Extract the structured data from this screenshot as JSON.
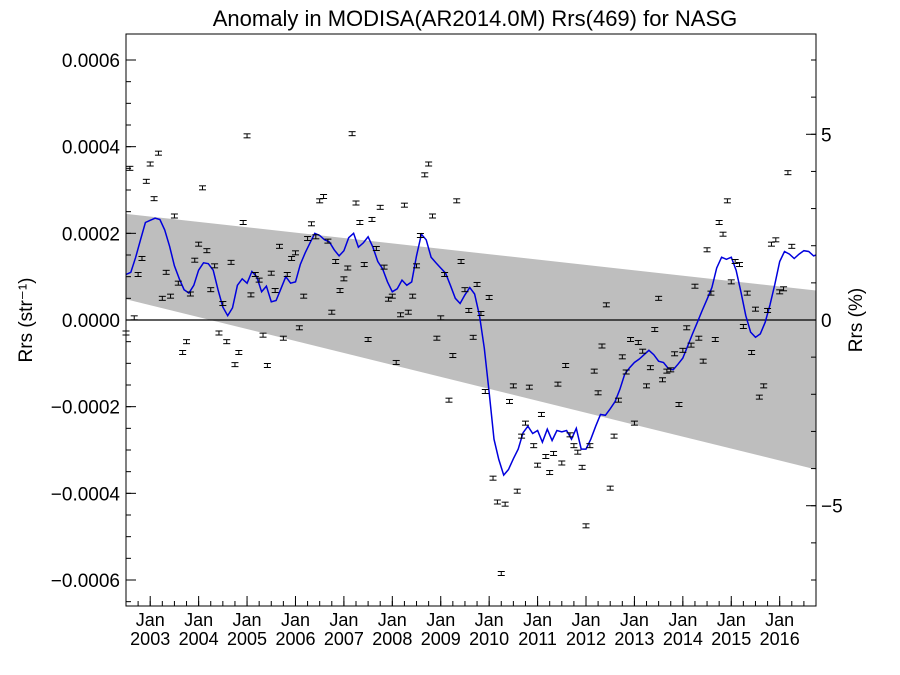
{
  "chart_data": {
    "type": "scatter",
    "title": "Anomaly in MODISA(AR2014.0M) Rrs(469) for NASG",
    "ylabel_left": "Rrs (str⁻¹)",
    "ylabel_right": "Rrs (%)",
    "xlim": [
      2002.5,
      2016.75
    ],
    "ylim": [
      -0.00066,
      0.00066
    ],
    "y2lim": [
      -7.7,
      7.7
    ],
    "yticks": [
      {
        "value": 0.0006,
        "label": "0.0006"
      },
      {
        "value": 0.0004,
        "label": "0.0004"
      },
      {
        "value": 0.0002,
        "label": "0.0002"
      },
      {
        "value": 0.0,
        "label": "0.0000"
      },
      {
        "value": -0.0002,
        "label": "−0.0002"
      },
      {
        "value": -0.0004,
        "label": "−0.0004"
      },
      {
        "value": -0.0006,
        "label": "−0.0006"
      }
    ],
    "y2ticks": [
      {
        "value": 5,
        "label": "5"
      },
      {
        "value": 0,
        "label": "0"
      },
      {
        "value": -5,
        "label": "−5"
      }
    ],
    "xticks": [
      {
        "value": 2003.0,
        "month": "Jan",
        "year": "2003"
      },
      {
        "value": 2004.0,
        "month": "Jan",
        "year": "2004"
      },
      {
        "value": 2005.0,
        "month": "Jan",
        "year": "2005"
      },
      {
        "value": 2006.0,
        "month": "Jan",
        "year": "2006"
      },
      {
        "value": 2007.0,
        "month": "Jan",
        "year": "2007"
      },
      {
        "value": 2008.0,
        "month": "Jan",
        "year": "2008"
      },
      {
        "value": 2009.0,
        "month": "Jan",
        "year": "2009"
      },
      {
        "value": 2010.0,
        "month": "Jan",
        "year": "2010"
      },
      {
        "value": 2011.0,
        "month": "Jan",
        "year": "2011"
      },
      {
        "value": 2012.0,
        "month": "Jan",
        "year": "2012"
      },
      {
        "value": 2013.0,
        "month": "Jan",
        "year": "2013"
      },
      {
        "value": 2014.0,
        "month": "Jan",
        "year": "2014"
      },
      {
        "value": 2015.0,
        "month": "Jan",
        "year": "2015"
      },
      {
        "value": 2016.0,
        "month": "Jan",
        "year": "2016"
      }
    ],
    "confidence_band": {
      "color": "#bebebe",
      "upper": [
        [
          2002.5,
          0.000245
        ],
        [
          2016.75,
          6.8e-05
        ]
      ],
      "lower": [
        [
          2002.5,
          4.8e-05
        ],
        [
          2016.75,
          -0.000345
        ]
      ]
    },
    "zero_line": true,
    "points": [
      [
        2002.5,
        -3e-05
      ],
      [
        2002.58,
        0.00035
      ],
      [
        2002.67,
        5e-06
      ],
      [
        2002.75,
        0.000105
      ],
      [
        2002.83,
        0.000142
      ],
      [
        2002.92,
        0.00032
      ],
      [
        2003.0,
        0.00036
      ],
      [
        2003.08,
        0.00028
      ],
      [
        2003.17,
        0.000385
      ],
      [
        2003.25,
        5e-05
      ],
      [
        2003.33,
        0.00011
      ],
      [
        2003.42,
        5.5e-05
      ],
      [
        2003.5,
        0.00024
      ],
      [
        2003.58,
        8.5e-05
      ],
      [
        2003.67,
        -7.5e-05
      ],
      [
        2003.75,
        -5e-05
      ],
      [
        2003.83,
        6e-05
      ],
      [
        2003.92,
        0.000138
      ],
      [
        2004.0,
        0.000175
      ],
      [
        2004.08,
        0.000305
      ],
      [
        2004.17,
        0.00016
      ],
      [
        2004.25,
        7e-05
      ],
      [
        2004.33,
        0.000125
      ],
      [
        2004.42,
        -3e-05
      ],
      [
        2004.5,
        3.8e-05
      ],
      [
        2004.58,
        -5e-05
      ],
      [
        2004.67,
        0.000133
      ],
      [
        2004.75,
        -0.000103
      ],
      [
        2004.83,
        -7.5e-05
      ],
      [
        2004.92,
        0.000225
      ],
      [
        2005.0,
        0.000425
      ],
      [
        2005.08,
        5.8e-05
      ],
      [
        2005.17,
        0.000105
      ],
      [
        2005.25,
        9.2e-05
      ],
      [
        2005.33,
        -3.5e-05
      ],
      [
        2005.42,
        -0.000105
      ],
      [
        2005.5,
        0.000108
      ],
      [
        2005.58,
        6.8e-05
      ],
      [
        2005.67,
        0.00017
      ],
      [
        2005.75,
        -4.2e-05
      ],
      [
        2005.83,
        0.000105
      ],
      [
        2005.92,
        0.000142
      ],
      [
        2006.0,
        0.000155
      ],
      [
        2006.08,
        -1.8e-05
      ],
      [
        2006.17,
        5.5e-05
      ],
      [
        2006.25,
        0.000188
      ],
      [
        2006.33,
        0.000222
      ],
      [
        2006.42,
        0.000192
      ],
      [
        2006.5,
        0.000275
      ],
      [
        2006.58,
        0.000285
      ],
      [
        2006.67,
        0.000182
      ],
      [
        2006.75,
        1.8e-05
      ],
      [
        2006.83,
        0.000135
      ],
      [
        2006.92,
        6.8e-05
      ],
      [
        2007.0,
        9.5e-05
      ],
      [
        2007.08,
        0.00012
      ],
      [
        2007.17,
        0.00043
      ],
      [
        2007.25,
        0.00027
      ],
      [
        2007.33,
        0.000225
      ],
      [
        2007.42,
        0.000128
      ],
      [
        2007.5,
        -4.5e-05
      ],
      [
        2007.58,
        0.000232
      ],
      [
        2007.67,
        0.000165
      ],
      [
        2007.75,
        0.00026
      ],
      [
        2007.83,
        0.000122
      ],
      [
        2007.92,
        4.8e-05
      ],
      [
        2008.0,
        5.5e-05
      ],
      [
        2008.08,
        -9.8e-05
      ],
      [
        2008.17,
        1.2e-05
      ],
      [
        2008.25,
        0.000265
      ],
      [
        2008.33,
        1.8e-05
      ],
      [
        2008.42,
        5.5e-05
      ],
      [
        2008.5,
        0.000125
      ],
      [
        2008.58,
        0.000195
      ],
      [
        2008.67,
        0.000335
      ],
      [
        2008.75,
        0.00036
      ],
      [
        2008.83,
        0.00024
      ],
      [
        2008.92,
        -4.2e-05
      ],
      [
        2009.0,
        5e-06
      ],
      [
        2009.08,
        0.000105
      ],
      [
        2009.17,
        -0.000185
      ],
      [
        2009.25,
        -8.2e-05
      ],
      [
        2009.33,
        0.000275
      ],
      [
        2009.42,
        0.000135
      ],
      [
        2009.5,
        7e-05
      ],
      [
        2009.58,
        2.2e-05
      ],
      [
        2009.67,
        -4e-05
      ],
      [
        2009.75,
        8.2e-05
      ],
      [
        2009.83,
        1.5e-05
      ],
      [
        2009.92,
        -0.000165
      ],
      [
        2010.0,
        5.2e-05
      ],
      [
        2010.08,
        -0.000365
      ],
      [
        2010.17,
        -0.00042
      ],
      [
        2010.25,
        -0.000585
      ],
      [
        2010.33,
        -0.000425
      ],
      [
        2010.42,
        -0.000188
      ],
      [
        2010.5,
        -0.000152
      ],
      [
        2010.58,
        -0.000395
      ],
      [
        2010.67,
        -0.000268
      ],
      [
        2010.75,
        -0.000238
      ],
      [
        2010.83,
        -0.000155
      ],
      [
        2010.92,
        -0.00029
      ],
      [
        2011.0,
        -0.000335
      ],
      [
        2011.08,
        -0.000218
      ],
      [
        2011.17,
        -0.000315
      ],
      [
        2011.25,
        -0.000352
      ],
      [
        2011.33,
        -0.000308
      ],
      [
        2011.42,
        -0.000148
      ],
      [
        2011.5,
        -0.00033
      ],
      [
        2011.58,
        -0.000105
      ],
      [
        2011.67,
        -0.000265
      ],
      [
        2011.75,
        -0.00029
      ],
      [
        2011.83,
        -0.000305
      ],
      [
        2011.92,
        -0.00034
      ],
      [
        2012.0,
        -0.000475
      ],
      [
        2012.08,
        -0.00029
      ],
      [
        2012.17,
        -0.000118
      ],
      [
        2012.25,
        -0.000168
      ],
      [
        2012.33,
        -6e-05
      ],
      [
        2012.42,
        3.5e-05
      ],
      [
        2012.5,
        -0.000388
      ],
      [
        2012.58,
        -0.000268
      ],
      [
        2012.67,
        -0.000185
      ],
      [
        2012.75,
        -8.5e-05
      ],
      [
        2012.83,
        -0.00012
      ],
      [
        2012.92,
        -4.5e-05
      ],
      [
        2013.0,
        -0.000238
      ],
      [
        2013.08,
        -5.2e-05
      ],
      [
        2013.17,
        -7.2e-05
      ],
      [
        2013.25,
        -0.000152
      ],
      [
        2013.33,
        -0.00011
      ],
      [
        2013.42,
        -2.2e-05
      ],
      [
        2013.5,
        5e-05
      ],
      [
        2013.58,
        -0.000138
      ],
      [
        2013.67,
        -0.000118
      ],
      [
        2013.75,
        -0.000115
      ],
      [
        2013.83,
        -7.8e-05
      ],
      [
        2013.92,
        -0.000195
      ],
      [
        2014.0,
        -7e-05
      ],
      [
        2014.08,
        -1.8e-05
      ],
      [
        2014.17,
        -5.8e-05
      ],
      [
        2014.25,
        7.8e-05
      ],
      [
        2014.33,
        -4.2e-05
      ],
      [
        2014.42,
        -9.5e-05
      ],
      [
        2014.5,
        0.000162
      ],
      [
        2014.58,
        6.2e-05
      ],
      [
        2014.67,
        -4.5e-05
      ],
      [
        2014.75,
        0.000225
      ],
      [
        2014.83,
        0.000198
      ],
      [
        2014.92,
        0.000275
      ],
      [
        2015.0,
        8.8e-05
      ],
      [
        2015.08,
        0.000135
      ],
      [
        2015.17,
        0.000128
      ],
      [
        2015.25,
        -1.5e-05
      ],
      [
        2015.33,
        6.2e-05
      ],
      [
        2015.42,
        -7.5e-05
      ],
      [
        2015.5,
        2.5e-05
      ],
      [
        2015.58,
        -0.000178
      ],
      [
        2015.67,
        -0.000152
      ],
      [
        2015.75,
        2.2e-05
      ],
      [
        2015.83,
        0.000175
      ],
      [
        2015.92,
        0.000185
      ],
      [
        2016.0,
        6.5e-05
      ],
      [
        2016.08,
        7.2e-05
      ],
      [
        2016.17,
        0.00034
      ],
      [
        2016.25,
        0.00017
      ]
    ],
    "smooth_line": {
      "color": "#0000dd",
      "points": [
        [
          2002.5,
          0.000105
        ],
        [
          2002.6,
          0.00011
        ],
        [
          2002.7,
          0.000145
        ],
        [
          2002.8,
          0.000185
        ],
        [
          2002.9,
          0.000225
        ],
        [
          2003.0,
          0.00023
        ],
        [
          2003.1,
          0.000235
        ],
        [
          2003.2,
          0.000232
        ],
        [
          2003.3,
          0.000208
        ],
        [
          2003.4,
          0.00017
        ],
        [
          2003.5,
          0.000125
        ],
        [
          2003.6,
          9.5e-05
        ],
        [
          2003.7,
          7e-05
        ],
        [
          2003.8,
          6.2e-05
        ],
        [
          2003.9,
          8e-05
        ],
        [
          2004.0,
          0.000115
        ],
        [
          2004.1,
          0.000132
        ],
        [
          2004.2,
          0.00013
        ],
        [
          2004.3,
          0.000115
        ],
        [
          2004.4,
          7e-05
        ],
        [
          2004.5,
          3e-05
        ],
        [
          2004.6,
          1e-05
        ],
        [
          2004.7,
          2.8e-05
        ],
        [
          2004.8,
          8e-05
        ],
        [
          2004.9,
          9.5e-05
        ],
        [
          2005.0,
          8.5e-05
        ],
        [
          2005.1,
          0.000112
        ],
        [
          2005.2,
          0.0001
        ],
        [
          2005.3,
          6.5e-05
        ],
        [
          2005.4,
          7.8e-05
        ],
        [
          2005.5,
          4.2e-05
        ],
        [
          2005.6,
          4.5e-05
        ],
        [
          2005.7,
          7.2e-05
        ],
        [
          2005.8,
          0.0001
        ],
        [
          2005.9,
          8.5e-05
        ],
        [
          2006.0,
          8.8e-05
        ],
        [
          2006.1,
          0.000128
        ],
        [
          2006.2,
          0.000155
        ],
        [
          2006.3,
          0.000178
        ],
        [
          2006.4,
          0.0002
        ],
        [
          2006.5,
          0.000195
        ],
        [
          2006.6,
          0.000185
        ],
        [
          2006.7,
          0.00018
        ],
        [
          2006.8,
          0.000162
        ],
        [
          2006.9,
          0.000148
        ],
        [
          2007.0,
          0.00016
        ],
        [
          2007.1,
          0.00019
        ],
        [
          2007.2,
          0.0002
        ],
        [
          2007.3,
          0.000168
        ],
        [
          2007.4,
          0.000178
        ],
        [
          2007.5,
          0.000192
        ],
        [
          2007.6,
          0.000168
        ],
        [
          2007.7,
          0.000135
        ],
        [
          2007.8,
          0.000118
        ],
        [
          2007.9,
          8.8e-05
        ],
        [
          2008.0,
          6.5e-05
        ],
        [
          2008.1,
          7.2e-05
        ],
        [
          2008.2,
          9.2e-05
        ],
        [
          2008.3,
          8e-05
        ],
        [
          2008.4,
          8.8e-05
        ],
        [
          2008.5,
          0.000148
        ],
        [
          2008.6,
          0.000198
        ],
        [
          2008.7,
          0.000185
        ],
        [
          2008.8,
          0.000145
        ],
        [
          2008.9,
          0.000132
        ],
        [
          2009.0,
          0.00012
        ],
        [
          2009.1,
          0.000108
        ],
        [
          2009.2,
          8e-05
        ],
        [
          2009.3,
          5e-05
        ],
        [
          2009.4,
          3.8e-05
        ],
        [
          2009.5,
          5.8e-05
        ],
        [
          2009.6,
          7.5e-05
        ],
        [
          2009.7,
          6e-05
        ],
        [
          2009.8,
          1e-05
        ],
        [
          2009.9,
          -6.5e-05
        ],
        [
          2010.0,
          -0.000168
        ],
        [
          2010.1,
          -0.000275
        ],
        [
          2010.2,
          -0.000322
        ],
        [
          2010.3,
          -0.000358
        ],
        [
          2010.4,
          -0.000345
        ],
        [
          2010.5,
          -0.00032
        ],
        [
          2010.6,
          -0.000298
        ],
        [
          2010.7,
          -0.00026
        ],
        [
          2010.8,
          -0.000245
        ],
        [
          2010.9,
          -0.000262
        ],
        [
          2011.0,
          -0.000255
        ],
        [
          2011.1,
          -0.000282
        ],
        [
          2011.2,
          -0.000252
        ],
        [
          2011.3,
          -0.000278
        ],
        [
          2011.4,
          -0.000255
        ],
        [
          2011.5,
          -0.000258
        ],
        [
          2011.6,
          -0.000255
        ],
        [
          2011.7,
          -0.000275
        ],
        [
          2011.8,
          -0.00025
        ],
        [
          2011.9,
          -0.000298
        ],
        [
          2012.0,
          -0.000298
        ],
        [
          2012.1,
          -0.000275
        ],
        [
          2012.2,
          -0.000245
        ],
        [
          2012.3,
          -0.000218
        ],
        [
          2012.4,
          -0.00022
        ],
        [
          2012.5,
          -0.000205
        ],
        [
          2012.6,
          -0.000188
        ],
        [
          2012.7,
          -0.00016
        ],
        [
          2012.8,
          -0.000125
        ],
        [
          2012.9,
          -0.00011
        ],
        [
          2013.0,
          -9.8e-05
        ],
        [
          2013.1,
          -9e-05
        ],
        [
          2013.2,
          -8e-05
        ],
        [
          2013.3,
          -7e-05
        ],
        [
          2013.4,
          -8e-05
        ],
        [
          2013.5,
          -9.5e-05
        ],
        [
          2013.6,
          -9.8e-05
        ],
        [
          2013.7,
          -0.000112
        ],
        [
          2013.8,
          -0.000115
        ],
        [
          2013.9,
          -0.000102
        ],
        [
          2014.0,
          -8.8e-05
        ],
        [
          2014.1,
          -6e-05
        ],
        [
          2014.2,
          -3.2e-05
        ],
        [
          2014.3,
          -5e-06
        ],
        [
          2014.4,
          2.2e-05
        ],
        [
          2014.5,
          4.8e-05
        ],
        [
          2014.6,
          7.5e-05
        ],
        [
          2014.7,
          0.00012
        ],
        [
          2014.8,
          0.000145
        ],
        [
          2014.9,
          0.00014
        ],
        [
          2015.0,
          0.000145
        ],
        [
          2015.1,
          0.000115
        ],
        [
          2015.2,
          6.5e-05
        ],
        [
          2015.3,
          1e-05
        ],
        [
          2015.4,
          -2.8e-05
        ],
        [
          2015.5,
          -4e-05
        ],
        [
          2015.6,
          -3.2e-05
        ],
        [
          2015.7,
          -5e-06
        ],
        [
          2015.8,
          3.5e-05
        ],
        [
          2015.9,
          8.2e-05
        ],
        [
          2016.0,
          0.000135
        ],
        [
          2016.1,
          0.000158
        ],
        [
          2016.2,
          0.000152
        ],
        [
          2016.3,
          0.000142
        ],
        [
          2016.4,
          0.000152
        ],
        [
          2016.5,
          0.00016
        ],
        [
          2016.6,
          0.000158
        ],
        [
          2016.7,
          0.000148
        ],
        [
          2016.75,
          0.00015
        ]
      ]
    }
  }
}
